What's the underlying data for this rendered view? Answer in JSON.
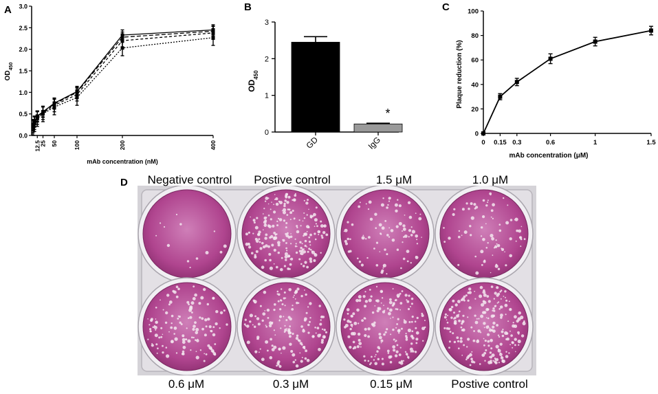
{
  "panel_letters": {
    "a": "A",
    "b": "B",
    "c": "C",
    "d": "D"
  },
  "chart_data": [
    {
      "panel": "A",
      "type": "line",
      "xlabel": "mAb concentration (nM)",
      "ylabel_main": "OD",
      "ylabel_sub": "450",
      "ylim": [
        0,
        3.0
      ],
      "yticks": [
        "0.0",
        "0.5",
        "1.0",
        "1.5",
        "2.0",
        "2.5",
        "3.0"
      ],
      "xticks": [
        "12.5",
        "25",
        "50",
        "100",
        "200",
        "400"
      ],
      "x": [
        3.125,
        6.25,
        12.5,
        25,
        50,
        100,
        200,
        400
      ],
      "series": [
        {
          "values": [
            0.25,
            0.33,
            0.45,
            0.55,
            0.75,
            1.02,
            2.33,
            2.45
          ],
          "err": 0.12,
          "dash": ""
        },
        {
          "values": [
            0.23,
            0.31,
            0.43,
            0.54,
            0.73,
            1.0,
            2.28,
            2.42
          ],
          "err": 0.12,
          "dash": "6,3"
        },
        {
          "values": [
            0.21,
            0.29,
            0.41,
            0.52,
            0.7,
            0.95,
            2.2,
            2.38
          ],
          "err": 0.15,
          "dash": "4,3"
        },
        {
          "values": [
            0.19,
            0.27,
            0.39,
            0.5,
            0.66,
            0.88,
            2.03,
            2.27
          ],
          "err": 0.18,
          "dash": "2,2"
        }
      ]
    },
    {
      "panel": "B",
      "type": "bar",
      "categories": [
        "GD",
        "IgG"
      ],
      "values": [
        2.45,
        0.22
      ],
      "errors": [
        0.15,
        0.02
      ],
      "colors": [
        "#000000",
        "#9a9a9a"
      ],
      "ylabel_main": "OD",
      "ylabel_sub": "450",
      "ylim": [
        0,
        3
      ],
      "yticks": [
        "0",
        "1",
        "2",
        "3"
      ],
      "annotation": "*"
    },
    {
      "panel": "C",
      "type": "line",
      "x": [
        0,
        0.15,
        0.3,
        0.6,
        1,
        1.5
      ],
      "values": [
        0,
        30,
        42,
        61,
        75,
        84
      ],
      "errors": [
        0,
        2.5,
        3,
        4,
        3.5,
        3.5
      ],
      "xlabel": "mAb concentration (μM)",
      "ylabel": "Plaque reduction (%)",
      "ylim": [
        0,
        100
      ],
      "yticks": [
        "0",
        "20",
        "40",
        "60",
        "80",
        "100"
      ],
      "xticks": [
        "0",
        "0.15",
        "0.3",
        "0.6",
        "1",
        "1.5"
      ]
    }
  ],
  "plate": {
    "top_labels": [
      "Negative control",
      "Postive control",
      "1.5 μM",
      "1.0 μM"
    ],
    "bottom_labels": [
      "0.6 μM",
      "0.3 μM",
      "0.15 μM",
      "Postive control"
    ],
    "plate_color": "#e3e0e5",
    "well_color": "#b0458f",
    "plaque_density_top": [
      0.05,
      0.85,
      0.35,
      0.3
    ],
    "plaque_density_bottom": [
      0.5,
      0.6,
      0.7,
      0.85
    ]
  }
}
